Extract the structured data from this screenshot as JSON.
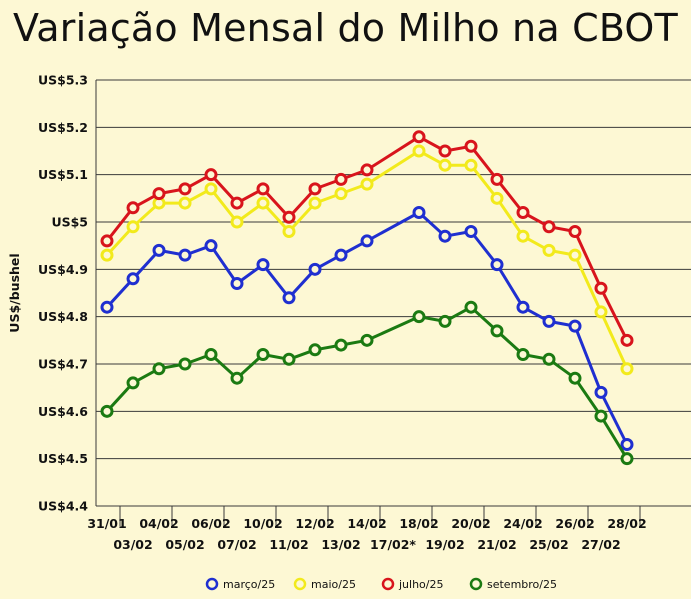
{
  "chart_data": {
    "type": "line",
    "title": "Variação Mensal do Milho na CBOT",
    "ylabel": "US$/bushel",
    "xlabel": "",
    "ylim": [
      4.4,
      5.3
    ],
    "yticks": [
      {
        "value": 4.4,
        "label": "US$4.4"
      },
      {
        "value": 4.5,
        "label": "US$4.5"
      },
      {
        "value": 4.6,
        "label": "US$4.6"
      },
      {
        "value": 4.7,
        "label": "US$4.7"
      },
      {
        "value": 4.8,
        "label": "US$4.8"
      },
      {
        "value": 4.9,
        "label": "US$4.9"
      },
      {
        "value": 5.0,
        "label": "US$5"
      },
      {
        "value": 5.1,
        "label": "US$5.1"
      },
      {
        "value": 5.2,
        "label": "US$5.2"
      },
      {
        "value": 5.3,
        "label": "US$5.3"
      }
    ],
    "categories": [
      "31/01",
      "03/02",
      "04/02",
      "05/02",
      "06/02",
      "07/02",
      "10/02",
      "11/02",
      "12/02",
      "13/02",
      "14/02",
      "17/02*",
      "18/02",
      "19/02",
      "20/02",
      "21/02",
      "24/02",
      "25/02",
      "26/02",
      "27/02",
      "28/02"
    ],
    "grid": true,
    "legend_position": "bottom",
    "series": [
      {
        "name": "março/25",
        "color": "#1f2fd0",
        "values": [
          4.82,
          4.88,
          4.94,
          4.93,
          4.95,
          4.87,
          4.91,
          4.84,
          4.9,
          4.93,
          4.96,
          null,
          5.02,
          4.97,
          4.98,
          4.91,
          4.82,
          4.79,
          4.78,
          4.64,
          4.53
        ]
      },
      {
        "name": "maio/25",
        "color": "#f2ea1c",
        "values": [
          4.93,
          4.99,
          5.04,
          5.04,
          5.07,
          5.0,
          5.04,
          4.98,
          5.04,
          5.06,
          5.08,
          null,
          5.15,
          5.12,
          5.12,
          5.05,
          4.97,
          4.94,
          4.93,
          4.81,
          4.69
        ]
      },
      {
        "name": "julho/25",
        "color": "#d8141c",
        "values": [
          4.96,
          5.03,
          5.06,
          5.07,
          5.1,
          5.04,
          5.07,
          5.01,
          5.07,
          5.09,
          5.11,
          null,
          5.18,
          5.15,
          5.16,
          5.09,
          5.02,
          4.99,
          4.98,
          4.86,
          4.75
        ]
      },
      {
        "name": "setembro/25",
        "color": "#1b7a12",
        "values": [
          4.6,
          4.66,
          4.69,
          4.7,
          4.72,
          4.67,
          4.72,
          4.71,
          4.73,
          4.74,
          4.75,
          null,
          4.8,
          4.79,
          4.82,
          4.77,
          4.72,
          4.71,
          4.67,
          4.59,
          4.5
        ]
      }
    ]
  }
}
